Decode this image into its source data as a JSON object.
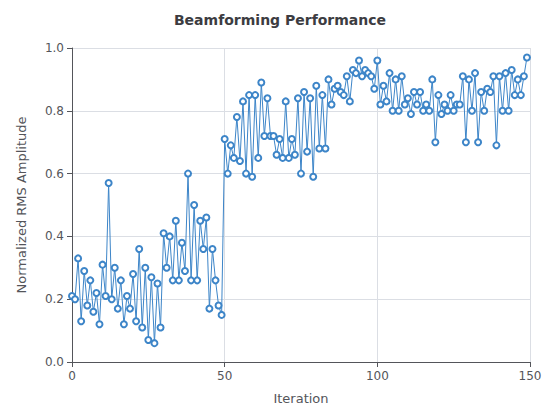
{
  "chart_data": {
    "type": "line",
    "title": "Beamforming Performance",
    "xlabel": "Iteration",
    "ylabel": "Normalized RMS Amplitude",
    "color": "#3d85c8",
    "marker": "o",
    "grid": true,
    "xlim": [
      0,
      150
    ],
    "ylim": [
      0,
      1.0
    ],
    "xticks": [
      0,
      50,
      100,
      150
    ],
    "yticks": [
      {
        "value": 0,
        "label": "0.0"
      },
      0.2,
      0.4,
      0.6,
      0.8,
      {
        "value": 1.0,
        "label": "1.0"
      }
    ],
    "x": [
      0,
      1,
      2,
      3,
      4,
      5,
      6,
      7,
      8,
      9,
      10,
      11,
      12,
      13,
      14,
      15,
      16,
      17,
      18,
      19,
      20,
      21,
      22,
      23,
      24,
      25,
      26,
      27,
      28,
      29,
      30,
      31,
      32,
      33,
      34,
      35,
      36,
      37,
      38,
      39,
      40,
      41,
      42,
      43,
      44,
      45,
      46,
      47,
      48,
      49,
      50,
      51,
      52,
      53,
      54,
      55,
      56,
      57,
      58,
      59,
      60,
      61,
      62,
      63,
      64,
      65,
      66,
      67,
      68,
      69,
      70,
      71,
      72,
      73,
      74,
      75,
      76,
      77,
      78,
      79,
      80,
      81,
      82,
      83,
      84,
      85,
      86,
      87,
      88,
      89,
      90,
      91,
      92,
      93,
      94,
      95,
      96,
      97,
      98,
      99,
      100,
      101,
      102,
      103,
      104,
      105,
      106,
      107,
      108,
      109,
      110,
      111,
      112,
      113,
      114,
      115,
      116,
      117,
      118,
      119,
      120,
      121,
      122,
      123,
      124,
      125,
      126,
      127,
      128,
      129,
      130,
      131,
      132,
      133,
      134,
      135,
      136,
      137,
      138,
      139,
      140,
      141,
      142,
      143,
      144,
      145,
      146,
      147,
      148,
      149
    ],
    "values": [
      0.21,
      0.2,
      0.33,
      0.13,
      0.29,
      0.18,
      0.26,
      0.16,
      0.22,
      0.12,
      0.31,
      0.21,
      0.57,
      0.2,
      0.3,
      0.17,
      0.26,
      0.12,
      0.21,
      0.17,
      0.28,
      0.13,
      0.36,
      0.11,
      0.3,
      0.07,
      0.27,
      0.06,
      0.25,
      0.11,
      0.41,
      0.3,
      0.4,
      0.26,
      0.45,
      0.26,
      0.38,
      0.29,
      0.6,
      0.26,
      0.5,
      0.26,
      0.45,
      0.36,
      0.46,
      0.17,
      0.36,
      0.26,
      0.18,
      0.15,
      0.71,
      0.6,
      0.69,
      0.65,
      0.78,
      0.64,
      0.83,
      0.6,
      0.85,
      0.59,
      0.85,
      0.65,
      0.89,
      0.72,
      0.84,
      0.72,
      0.72,
      0.66,
      0.71,
      0.65,
      0.83,
      0.65,
      0.71,
      0.66,
      0.84,
      0.6,
      0.86,
      0.67,
      0.84,
      0.59,
      0.88,
      0.68,
      0.85,
      0.68,
      0.9,
      0.82,
      0.87,
      0.88,
      0.86,
      0.85,
      0.91,
      0.83,
      0.93,
      0.92,
      0.96,
      0.91,
      0.93,
      0.92,
      0.91,
      0.87,
      0.96,
      0.82,
      0.88,
      0.83,
      0.92,
      0.8,
      0.9,
      0.8,
      0.91,
      0.82,
      0.84,
      0.79,
      0.86,
      0.82,
      0.86,
      0.8,
      0.82,
      0.8,
      0.9,
      0.7,
      0.85,
      0.79,
      0.82,
      0.8,
      0.85,
      0.8,
      0.82,
      0.82,
      0.91,
      0.7,
      0.9,
      0.8,
      0.92,
      0.7,
      0.86,
      0.8,
      0.87,
      0.86,
      0.91,
      0.69,
      0.91,
      0.8,
      0.92,
      0.8,
      0.93,
      0.85,
      0.9,
      0.85,
      0.91,
      0.97
    ]
  }
}
